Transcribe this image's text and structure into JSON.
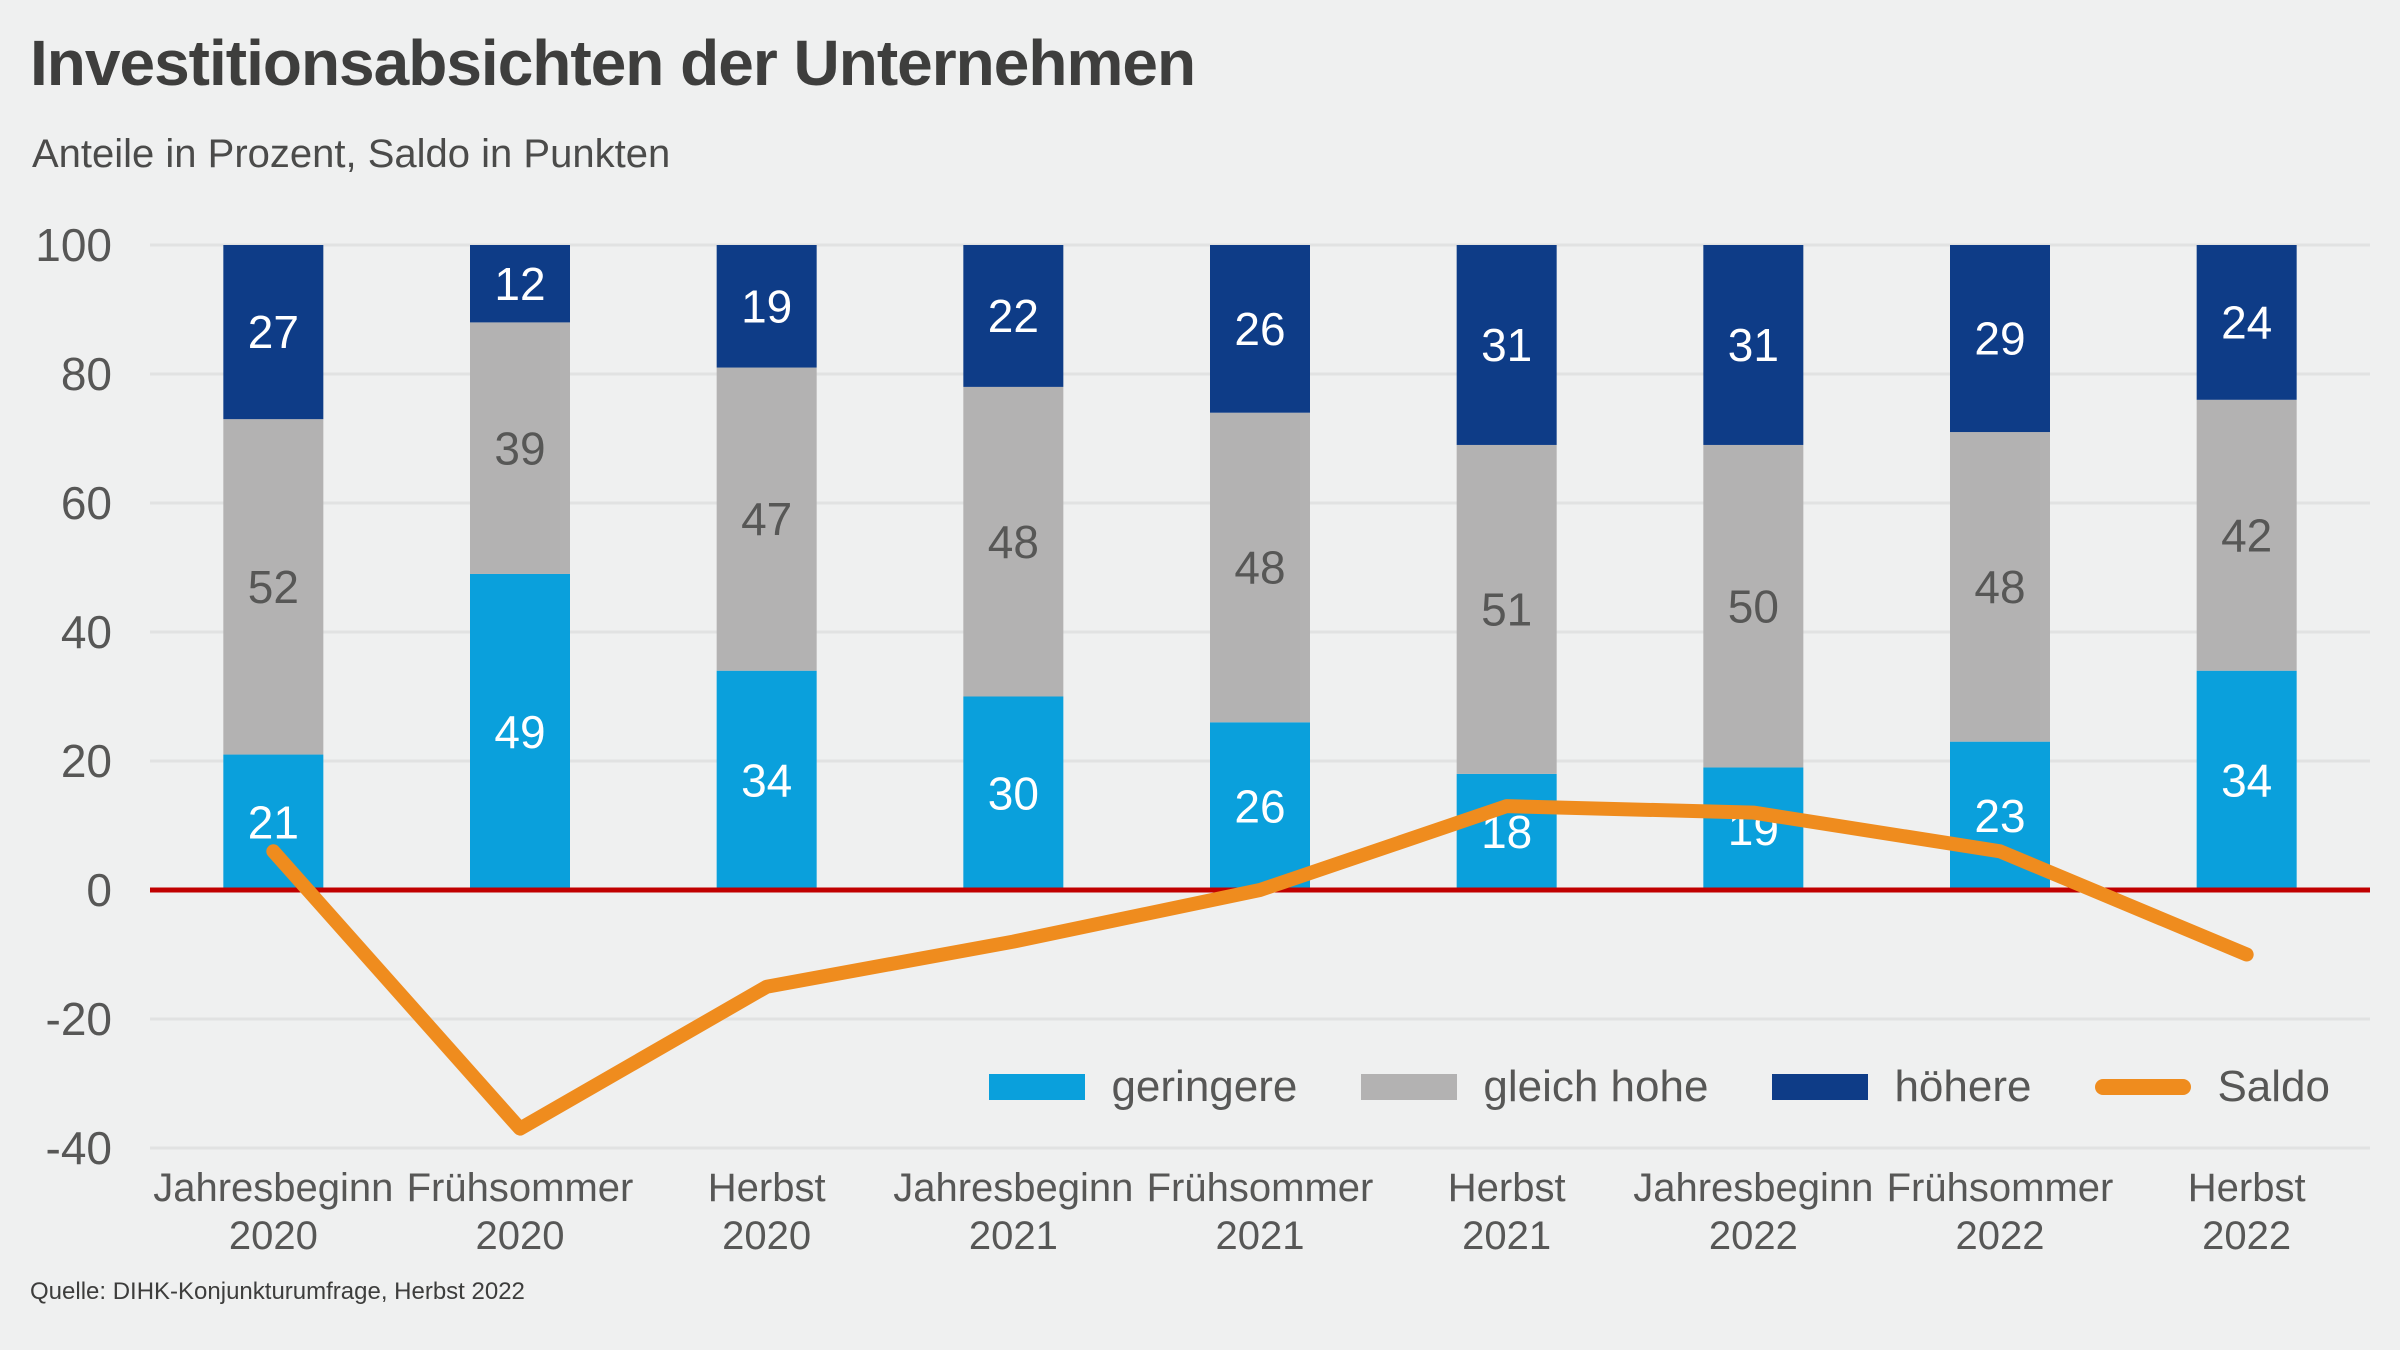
{
  "footer": {
    "source": "Quelle: DIHK-Konjunkturumfrage, Herbst 2022"
  },
  "chart_data": {
    "type": "stacked-bar-with-line",
    "title": "Investitionsabsichten der Unternehmen",
    "subtitle": "Anteile in Prozent, Saldo in Punkten",
    "categories": [
      "Jahresbeginn\n2020",
      "Frühsommer\n2020",
      "Herbst\n2020",
      "Jahresbeginn\n2021",
      "Frühsommer\n2021",
      "Herbst\n2021",
      "Jahresbeginn\n2022",
      "Frühsommer\n2022",
      "Herbst\n2022"
    ],
    "series": [
      {
        "name": "geringere",
        "color": "#0AA0DC",
        "label_color": "#FFFFFF",
        "values": [
          21,
          49,
          34,
          30,
          26,
          18,
          19,
          23,
          34
        ]
      },
      {
        "name": "gleich hohe",
        "color": "#B3B2B2",
        "label_color": "#575756",
        "values": [
          52,
          39,
          47,
          48,
          48,
          51,
          50,
          48,
          42
        ]
      },
      {
        "name": "höhere",
        "color": "#0E3C87",
        "label_color": "#FFFFFF",
        "values": [
          27,
          12,
          19,
          22,
          26,
          31,
          31,
          29,
          24
        ]
      }
    ],
    "line_series": {
      "name": "Saldo",
      "color": "#EF8C1E",
      "values": [
        6,
        -37,
        -15,
        -8,
        0,
        13,
        12,
        6,
        -10
      ]
    },
    "ylim": [
      -40,
      100
    ],
    "yticks": [
      100,
      80,
      60,
      40,
      20,
      0,
      -20,
      -40
    ],
    "grid": true,
    "grid_color": "#E1E2E2",
    "zero_line_color": "#C00000",
    "axis_text_color": "#575756",
    "background_color": "#EFF0F0",
    "legend_position": "inside-bottom-right"
  }
}
